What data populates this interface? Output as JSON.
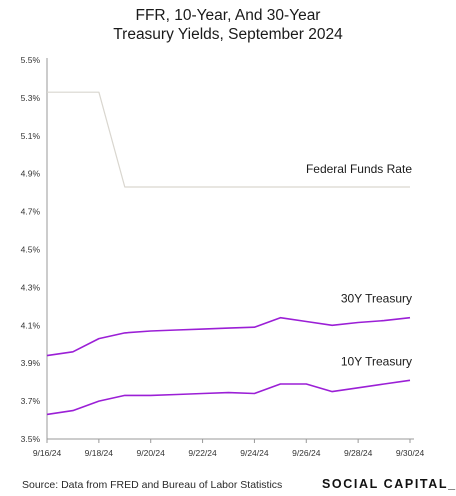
{
  "header": {
    "title_line1": "FFR, 10-Year, And 30-Year",
    "title_line2": "Treasury Yields, September 2024"
  },
  "footer": {
    "source": "Source:  Data from FRED and Bureau of Labor Statistics",
    "brand": "SOCIAL CAPITAL_"
  },
  "chart_data": {
    "type": "line",
    "title": "FFR, 10-Year, And 30-Year Treasury Yields, September 2024",
    "xlabel": "",
    "ylabel": "",
    "x": [
      "9/16/24",
      "9/17/24",
      "9/18/24",
      "9/19/24",
      "9/20/24",
      "9/21/24",
      "9/22/24",
      "9/23/24",
      "9/24/24",
      "9/25/24",
      "9/26/24",
      "9/27/24",
      "9/28/24",
      "9/29/24",
      "9/30/24"
    ],
    "x_ticks": [
      "9/16/24",
      "9/18/24",
      "9/20/24",
      "9/22/24",
      "9/24/24",
      "9/26/24",
      "9/28/24",
      "9/30/24"
    ],
    "y_ticks": [
      "3.5%",
      "3.7%",
      "3.9%",
      "4.1%",
      "4.3%",
      "4.5%",
      "4.7%",
      "4.9%",
      "5.1%",
      "5.3%",
      "5.5%"
    ],
    "ylim": [
      3.5,
      5.5
    ],
    "grid": false,
    "series": [
      {
        "name": "Federal Funds Rate",
        "color": "#d9d6cf",
        "values": [
          5.33,
          5.33,
          5.33,
          4.83,
          4.83,
          4.83,
          4.83,
          4.83,
          4.83,
          4.83,
          4.83,
          4.83,
          4.83,
          4.83,
          4.83
        ]
      },
      {
        "name": "30Y Treasury",
        "color": "#9b1fd6",
        "values": [
          3.94,
          3.96,
          4.03,
          4.06,
          4.07,
          4.075,
          4.08,
          4.085,
          4.09,
          4.14,
          4.12,
          4.1,
          4.115,
          4.125,
          4.14
        ]
      },
      {
        "name": "10Y Treasury",
        "color": "#9b1fd6",
        "values": [
          3.63,
          3.65,
          3.7,
          3.73,
          3.73,
          3.735,
          3.74,
          3.745,
          3.74,
          3.79,
          3.79,
          3.75,
          3.77,
          3.79,
          3.81
        ]
      }
    ]
  }
}
